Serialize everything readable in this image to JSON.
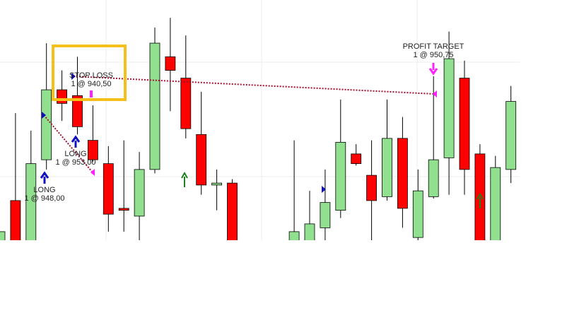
{
  "chart_data": {
    "type": "candlestick",
    "open": [
      931.75,
      937.0,
      931.75,
      942.25,
      951.25,
      950.5,
      944.75,
      941.75,
      936.0,
      935.0,
      941.0,
      955.5,
      952.75,
      945.5,
      939.0,
      939.25,
      null,
      null,
      null,
      931.75,
      931.75,
      933.5,
      935.75,
      943.0,
      940.25,
      937.5,
      945.0,
      932.25,
      937.5,
      942.5,
      952.75,
      943.0,
      931.75,
      941.0
    ],
    "high": [
      933.0,
      948.25,
      946.0,
      957.25,
      953.75,
      955.5,
      949.25,
      944.0,
      944.75,
      943.25,
      959.25,
      960.5,
      958.25,
      951.0,
      941.0,
      939.75,
      null,
      null,
      null,
      944.75,
      938.25,
      941.0,
      950.0,
      944.25,
      944.75,
      950.0,
      947.75,
      941.0,
      953.0,
      958.75,
      955.0,
      944.25,
      942.75,
      951.75
    ],
    "low": [
      931.75,
      931.75,
      931.75,
      941.0,
      947.25,
      945.5,
      942.0,
      933.0,
      933.0,
      931.75,
      940.5,
      948.5,
      945.0,
      937.75,
      935.75,
      931.75,
      null,
      null,
      null,
      931.75,
      931.75,
      931.75,
      934.75,
      941.5,
      931.75,
      937.0,
      933.5,
      931.75,
      937.25,
      937.75,
      937.75,
      931.75,
      931.75,
      939.25
    ],
    "close": [
      933.0,
      931.75,
      941.75,
      951.25,
      949.5,
      946.5,
      942.25,
      935.25,
      935.75,
      941.0,
      957.25,
      953.75,
      946.25,
      939.0,
      939.25,
      931.75,
      null,
      null,
      null,
      933.0,
      934.0,
      936.75,
      944.5,
      941.75,
      937.0,
      945.0,
      936.0,
      938.25,
      942.25,
      955.25,
      941.0,
      931.75,
      941.25,
      949.75
    ],
    "ylim": [
      931.9,
      962.8
    ],
    "up_color": "#90e090",
    "down_color": "#ff0000",
    "annotations": [
      {
        "title": "LONG",
        "text": "1 @ 948,00"
      },
      {
        "title": "LONG",
        "text": "1 @ 953,00"
      },
      {
        "title": "STOP LOSS",
        "text": "1 @ 940,50"
      },
      {
        "title": "PROFIT TARGET",
        "text": "1 @ 950,75"
      }
    ]
  }
}
